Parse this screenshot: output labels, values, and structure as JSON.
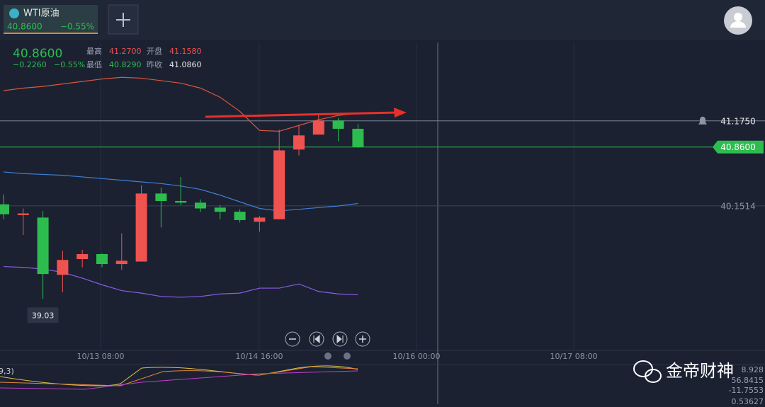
{
  "tab": {
    "name": "WTI原油",
    "price": "40.8600",
    "change": "−0.55%"
  },
  "quote": {
    "price": "40.8600",
    "change": "−0.2260",
    "change_pct": "−0.55%",
    "high_label": "最高",
    "high": "41.2700",
    "open_label": "开盘",
    "open": "41.1580",
    "low_label": "最低",
    "low": "40.8290",
    "prev_label": "昨收",
    "prev": "41.0860"
  },
  "chart": {
    "ylim": [
      38.41,
      42.12
    ],
    "price_labels": [
      {
        "value": 41.175,
        "label": "41.1750"
      },
      {
        "value": 40.86,
        "label": "40.8600"
      },
      {
        "value": 40.1514,
        "label": "40.1514"
      }
    ],
    "time_labels": [
      "10/13 08:00",
      "10/14 16:00",
      "10/16 00:00",
      "10/17 08:00"
    ],
    "low_tooltip": {
      "value": 39.03,
      "label": "39.03"
    },
    "candles": [
      {
        "open": 40.17,
        "high": 40.29,
        "low": 39.99,
        "close": 40.05
      },
      {
        "open": 40.04,
        "high": 40.12,
        "low": 39.8,
        "close": 40.06
      },
      {
        "open": 40.01,
        "high": 40.09,
        "low": 39.03,
        "close": 39.33
      },
      {
        "open": 39.32,
        "high": 39.61,
        "low": 39.11,
        "close": 39.5
      },
      {
        "open": 39.51,
        "high": 39.62,
        "low": 39.41,
        "close": 39.57
      },
      {
        "open": 39.57,
        "high": 39.58,
        "low": 39.41,
        "close": 39.45
      },
      {
        "open": 39.45,
        "high": 39.82,
        "low": 39.38,
        "close": 39.49
      },
      {
        "open": 39.48,
        "high": 40.4,
        "low": 39.48,
        "close": 40.3
      },
      {
        "open": 40.3,
        "high": 40.37,
        "low": 39.89,
        "close": 40.21
      },
      {
        "open": 40.21,
        "high": 40.5,
        "low": 40.16,
        "close": 40.19
      },
      {
        "open": 40.19,
        "high": 40.23,
        "low": 40.08,
        "close": 40.12
      },
      {
        "open": 40.13,
        "high": 40.16,
        "low": 39.99,
        "close": 40.08
      },
      {
        "open": 40.08,
        "high": 40.11,
        "low": 39.95,
        "close": 39.98
      },
      {
        "open": 39.96,
        "high": 40.03,
        "low": 39.84,
        "close": 40.01
      },
      {
        "open": 39.99,
        "high": 41.07,
        "low": 39.99,
        "close": 40.82
      },
      {
        "open": 40.83,
        "high": 41.12,
        "low": 40.76,
        "close": 41.0
      },
      {
        "open": 41.01,
        "high": 41.25,
        "low": 41.01,
        "close": 41.18
      },
      {
        "open": 41.18,
        "high": 41.21,
        "low": 40.93,
        "close": 41.08
      },
      {
        "open": 41.08,
        "high": 41.14,
        "low": 40.85,
        "close": 40.86
      }
    ],
    "bands": [
      {
        "name": "upper",
        "color": "#d9573f",
        "values": [
          41.54,
          41.57,
          41.59,
          41.62,
          41.65,
          41.68,
          41.7,
          41.69,
          41.66,
          41.63,
          41.57,
          41.46,
          41.29,
          41.06,
          41.05,
          41.12,
          41.19,
          41.24,
          41.27
        ]
      },
      {
        "name": "middle",
        "color": "#3f7fd6",
        "values": [
          40.56,
          40.54,
          40.53,
          40.52,
          40.5,
          40.48,
          40.46,
          40.44,
          40.42,
          40.39,
          40.35,
          40.28,
          40.2,
          40.12,
          40.09,
          40.11,
          40.13,
          40.15,
          40.18
        ]
      },
      {
        "name": "lower",
        "color": "#8a5ce6",
        "values": [
          39.42,
          39.41,
          39.39,
          39.35,
          39.28,
          39.2,
          39.13,
          39.1,
          39.06,
          39.05,
          39.06,
          39.09,
          39.1,
          39.16,
          39.16,
          39.21,
          39.12,
          39.09,
          39.08
        ]
      }
    ],
    "up_color": "#ef5350",
    "down_color": "#2dbd4e"
  },
  "indicator": {
    "params": "9,3)",
    "values": [
      "8.928",
      "56.8415",
      "-11.7553",
      "0.53627"
    ]
  },
  "watermark": "金帝财神"
}
